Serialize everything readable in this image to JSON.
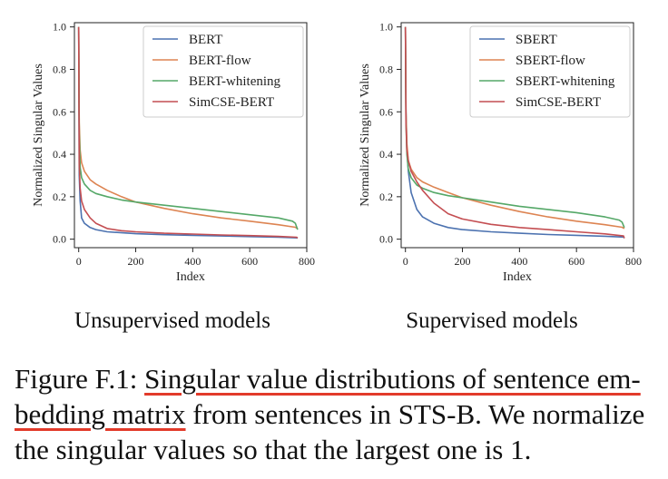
{
  "chart_data": [
    {
      "type": "line",
      "xlabel": "Index",
      "ylabel": "Normalized Singular Values",
      "xlim": [
        -15,
        800
      ],
      "ylim": [
        -0.04,
        1.02
      ],
      "xticks": [
        0,
        200,
        400,
        600,
        800
      ],
      "yticks": [
        "0.0",
        "0.2",
        "0.4",
        "0.6",
        "0.8",
        "1.0"
      ],
      "legend": "top-right",
      "grid": false,
      "series": [
        {
          "name": "BERT",
          "color": "#4c72b0",
          "x": [
            0,
            2,
            5,
            10,
            20,
            40,
            60,
            100,
            200,
            300,
            400,
            500,
            600,
            700,
            765,
            768
          ],
          "y": [
            1.0,
            0.3,
            0.18,
            0.1,
            0.075,
            0.055,
            0.045,
            0.035,
            0.026,
            0.021,
            0.018,
            0.015,
            0.012,
            0.009,
            0.006,
            0.005
          ]
        },
        {
          "name": "BERT-flow",
          "color": "#dd8452",
          "x": [
            0,
            2,
            5,
            10,
            20,
            40,
            60,
            100,
            150,
            200,
            300,
            400,
            500,
            600,
            700,
            760,
            768
          ],
          "y": [
            1.0,
            0.55,
            0.42,
            0.36,
            0.32,
            0.28,
            0.26,
            0.23,
            0.2,
            0.175,
            0.145,
            0.12,
            0.1,
            0.085,
            0.068,
            0.056,
            0.05
          ]
        },
        {
          "name": "BERT-whitening",
          "color": "#55a868",
          "x": [
            0,
            2,
            5,
            10,
            20,
            40,
            60,
            100,
            150,
            200,
            300,
            400,
            500,
            600,
            700,
            750,
            760,
            768
          ],
          "y": [
            1.0,
            0.5,
            0.34,
            0.29,
            0.26,
            0.23,
            0.215,
            0.2,
            0.185,
            0.175,
            0.16,
            0.145,
            0.13,
            0.115,
            0.1,
            0.085,
            0.075,
            0.045
          ]
        },
        {
          "name": "SimCSE-BERT",
          "color": "#c44e52",
          "x": [
            0,
            2,
            5,
            10,
            20,
            40,
            60,
            100,
            150,
            200,
            300,
            400,
            500,
            600,
            700,
            765,
            768
          ],
          "y": [
            1.0,
            0.35,
            0.24,
            0.18,
            0.14,
            0.1,
            0.075,
            0.05,
            0.04,
            0.035,
            0.028,
            0.024,
            0.02,
            0.017,
            0.013,
            0.009,
            0.005
          ]
        }
      ]
    },
    {
      "type": "line",
      "xlabel": "Index",
      "ylabel": "Normalized Singular Values",
      "xlim": [
        -15,
        800
      ],
      "ylim": [
        -0.04,
        1.02
      ],
      "xticks": [
        0,
        200,
        400,
        600,
        800
      ],
      "yticks": [
        "0.0",
        "0.2",
        "0.4",
        "0.6",
        "0.8",
        "1.0"
      ],
      "legend": "top-right",
      "grid": false,
      "series": [
        {
          "name": "SBERT",
          "color": "#4c72b0",
          "x": [
            0,
            2,
            5,
            10,
            20,
            40,
            60,
            100,
            150,
            200,
            300,
            400,
            500,
            600,
            700,
            765,
            768
          ],
          "y": [
            1.0,
            0.6,
            0.42,
            0.32,
            0.22,
            0.14,
            0.105,
            0.075,
            0.055,
            0.045,
            0.035,
            0.028,
            0.022,
            0.018,
            0.014,
            0.01,
            0.005
          ]
        },
        {
          "name": "SBERT-flow",
          "color": "#dd8452",
          "x": [
            0,
            2,
            5,
            10,
            20,
            40,
            60,
            100,
            150,
            200,
            300,
            400,
            500,
            600,
            700,
            760,
            768
          ],
          "y": [
            1.0,
            0.6,
            0.45,
            0.37,
            0.33,
            0.29,
            0.27,
            0.245,
            0.22,
            0.195,
            0.16,
            0.13,
            0.105,
            0.085,
            0.068,
            0.056,
            0.05
          ]
        },
        {
          "name": "SBERT-whitening",
          "color": "#55a868",
          "x": [
            0,
            2,
            5,
            10,
            20,
            40,
            60,
            100,
            150,
            200,
            300,
            400,
            500,
            600,
            700,
            750,
            760,
            768
          ],
          "y": [
            1.0,
            0.55,
            0.4,
            0.33,
            0.29,
            0.255,
            0.24,
            0.22,
            0.205,
            0.195,
            0.175,
            0.155,
            0.14,
            0.125,
            0.105,
            0.09,
            0.08,
            0.055
          ]
        },
        {
          "name": "SimCSE-BERT",
          "color": "#c44e52",
          "x": [
            0,
            2,
            5,
            10,
            20,
            40,
            60,
            100,
            150,
            200,
            300,
            400,
            500,
            600,
            700,
            765,
            768
          ],
          "y": [
            1.0,
            0.55,
            0.42,
            0.37,
            0.32,
            0.27,
            0.23,
            0.17,
            0.12,
            0.095,
            0.07,
            0.055,
            0.045,
            0.035,
            0.025,
            0.015,
            0.005
          ]
        }
      ]
    }
  ],
  "subcaptions": {
    "left": "Unsupervised models",
    "right": "Supervised models"
  },
  "caption": {
    "prefix": "Figure F.1: ",
    "highlight_1": "Singular value distributions of sentence em-",
    "highlight_2": "bedding matrix",
    "rest": " from sentences in STS-B. We normalize the singular values so that the largest one is 1.",
    "highlight_color": "#e23a2a"
  }
}
